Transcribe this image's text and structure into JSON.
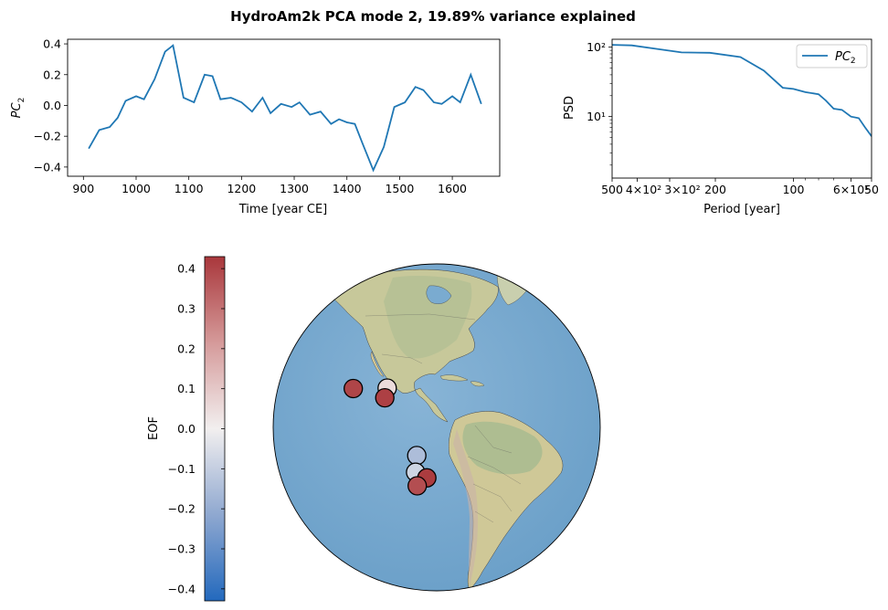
{
  "figure": {
    "title": "HydroAm2k PCA mode 2, 19.89% variance explained"
  },
  "chart_data": [
    {
      "type": "line",
      "xlabel": "Time [year CE]",
      "ylabel": "PC",
      "ylabel_sub": "2",
      "xlim": [
        870,
        1690
      ],
      "ylim": [
        -0.46,
        0.43
      ],
      "xticks": [
        900,
        1000,
        1100,
        1200,
        1300,
        1400,
        1500,
        1600
      ],
      "xtick_labels": [
        "900",
        "1000",
        "1100",
        "1200",
        "1300",
        "1400",
        "1500",
        "1600"
      ],
      "yticks": [
        -0.4,
        -0.2,
        0.0,
        0.2,
        0.4
      ],
      "ytick_labels": [
        "−0.4",
        "−0.2",
        "0.0",
        "0.2",
        "0.4"
      ],
      "color": "#1f77b4",
      "grid": false,
      "x": [
        910,
        930,
        950,
        965,
        980,
        1000,
        1015,
        1035,
        1055,
        1070,
        1090,
        1110,
        1130,
        1145,
        1160,
        1180,
        1200,
        1220,
        1240,
        1255,
        1275,
        1295,
        1310,
        1330,
        1350,
        1370,
        1385,
        1400,
        1415,
        1430,
        1450,
        1470,
        1490,
        1510,
        1530,
        1545,
        1565,
        1580,
        1600,
        1615,
        1635,
        1655
      ],
      "y": [
        -0.28,
        -0.16,
        -0.14,
        -0.08,
        0.03,
        0.06,
        0.04,
        0.17,
        0.35,
        0.39,
        0.05,
        0.02,
        0.2,
        0.19,
        0.04,
        0.05,
        0.02,
        -0.04,
        0.05,
        -0.05,
        0.01,
        -0.01,
        0.02,
        -0.06,
        -0.04,
        -0.12,
        -0.09,
        -0.11,
        -0.12,
        -0.25,
        -0.42,
        -0.27,
        -0.01,
        0.02,
        0.12,
        0.1,
        0.02,
        0.01,
        0.06,
        0.02,
        0.2,
        0.01
      ]
    },
    {
      "type": "line",
      "scale": "loglog",
      "xlabel": "Period [year]",
      "ylabel": "PSD",
      "x_reversed": true,
      "xlim": [
        500,
        50
      ],
      "ylim": [
        1.3,
        130
      ],
      "xtick_labels_text": [
        "500",
        "4×10²",
        "3×10²",
        "200",
        "100",
        "6×10¹",
        "50"
      ],
      "yticks": [
        10,
        100
      ],
      "ytick_labels": [
        "10¹",
        "10²"
      ],
      "legend": {
        "label": "PC",
        "label_sub": "2",
        "location": "upper right"
      },
      "color": "#1f77b4",
      "series": [
        {
          "name": "PC2",
          "x": [
            500,
            420,
            340,
            270,
            210,
            160,
            130,
            110,
            100,
            90,
            80,
            75,
            70,
            65,
            60,
            56,
            53,
            50
          ],
          "y": [
            108,
            106,
            95,
            84,
            83,
            72,
            46,
            26,
            25,
            22.5,
            21,
            17,
            13,
            12.5,
            10,
            9.5,
            7,
            5.2
          ]
        }
      ]
    },
    {
      "type": "map",
      "projection": "orthographic",
      "colorbar": {
        "label": "EOF",
        "cmap": "vlag",
        "vmin": -0.43,
        "vmax": 0.43,
        "ticks": [
          0.4,
          0.3,
          0.2,
          0.1,
          0.0,
          -0.1,
          -0.2,
          -0.3,
          -0.4
        ],
        "tick_labels": [
          "0.4",
          "0.3",
          "0.2",
          "0.1",
          "0.0",
          "−0.1",
          "−0.2",
          "−0.3",
          "−0.4"
        ]
      },
      "sites": [
        {
          "lon": -105,
          "lat": 20.5,
          "eof": 0.4
        },
        {
          "lon": -91,
          "lat": 21.5,
          "eof": 0.05
        },
        {
          "lon": -91.5,
          "lat": 18,
          "eof": 0.41
        },
        {
          "lon": -79,
          "lat": -2,
          "eof": -0.15
        },
        {
          "lon": -79.5,
          "lat": -8,
          "eof": -0.08
        },
        {
          "lon": -75.5,
          "lat": -10,
          "eof": 0.42
        },
        {
          "lon": -79,
          "lat": -13,
          "eof": 0.38
        }
      ]
    }
  ]
}
